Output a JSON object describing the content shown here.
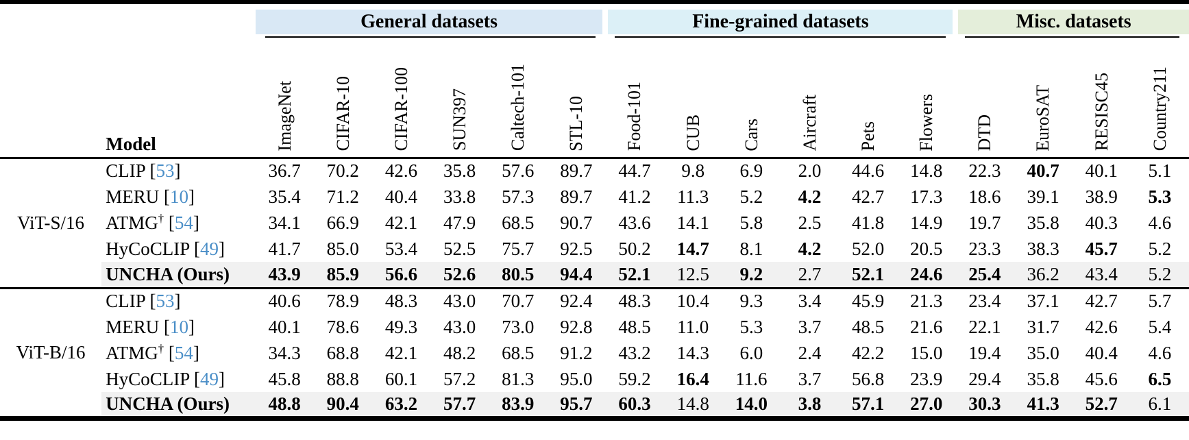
{
  "colors": {
    "general_bg": "#d9e8f5",
    "fine_bg": "#dcf0f7",
    "misc_bg": "#e4eeda",
    "cite": "#4a8ec7",
    "highlight_row": "#f1f1f1"
  },
  "header": {
    "model_label": "Model",
    "groups": [
      {
        "id": "general",
        "label": "General datasets",
        "span": 6
      },
      {
        "id": "fine",
        "label": "Fine-grained datasets",
        "span": 6
      },
      {
        "id": "misc",
        "label": "Misc. datasets",
        "span": 4
      }
    ],
    "columns": [
      "ImageNet",
      "CIFAR-10",
      "CIFAR-100",
      "SUN397",
      "Caltech-101",
      "STL-10",
      "Food-101",
      "CUB",
      "Cars",
      "Aircraft",
      "Pets",
      "Flowers",
      "DTD",
      "EuroSAT",
      "RESISC45",
      "Country211"
    ]
  },
  "sections": [
    {
      "backbone": "ViT-S/16",
      "rows": [
        {
          "model": "CLIP",
          "cite": "53",
          "dagger": false,
          "ours": false,
          "values": [
            "36.7",
            "70.2",
            "42.6",
            "35.8",
            "57.6",
            "89.7",
            "44.7",
            "9.8",
            "6.9",
            "2.0",
            "44.6",
            "14.8",
            "22.3",
            "40.7",
            "40.1",
            "5.1"
          ],
          "bold": [
            13
          ]
        },
        {
          "model": "MERU",
          "cite": "10",
          "dagger": false,
          "ours": false,
          "values": [
            "35.4",
            "71.2",
            "40.4",
            "33.8",
            "57.3",
            "89.7",
            "41.2",
            "11.3",
            "5.2",
            "4.2",
            "42.7",
            "17.3",
            "18.6",
            "39.1",
            "38.9",
            "5.3"
          ],
          "bold": [
            9,
            15
          ]
        },
        {
          "model": "ATMG",
          "cite": "54",
          "dagger": true,
          "ours": false,
          "values": [
            "34.1",
            "66.9",
            "42.1",
            "47.9",
            "68.5",
            "90.7",
            "43.6",
            "14.1",
            "5.8",
            "2.5",
            "41.8",
            "14.9",
            "19.7",
            "35.8",
            "40.3",
            "4.6"
          ],
          "bold": []
        },
        {
          "model": "HyCoCLIP",
          "cite": "49",
          "dagger": false,
          "ours": false,
          "values": [
            "41.7",
            "85.0",
            "53.4",
            "52.5",
            "75.7",
            "92.5",
            "50.2",
            "14.7",
            "8.1",
            "4.2",
            "52.0",
            "20.5",
            "23.3",
            "38.3",
            "45.7",
            "5.2"
          ],
          "bold": [
            7,
            9,
            14
          ]
        },
        {
          "model": "UNCHA (Ours)",
          "cite": "",
          "dagger": false,
          "ours": true,
          "values": [
            "43.9",
            "85.9",
            "56.6",
            "52.6",
            "80.5",
            "94.4",
            "52.1",
            "12.5",
            "9.2",
            "2.7",
            "52.1",
            "24.6",
            "25.4",
            "36.2",
            "43.4",
            "5.2"
          ],
          "bold": [
            0,
            1,
            2,
            3,
            4,
            5,
            6,
            8,
            10,
            11,
            12
          ]
        }
      ]
    },
    {
      "backbone": "ViT-B/16",
      "rows": [
        {
          "model": "CLIP",
          "cite": "53",
          "dagger": false,
          "ours": false,
          "values": [
            "40.6",
            "78.9",
            "48.3",
            "43.0",
            "70.7",
            "92.4",
            "48.3",
            "10.4",
            "9.3",
            "3.4",
            "45.9",
            "21.3",
            "23.4",
            "37.1",
            "42.7",
            "5.7"
          ],
          "bold": []
        },
        {
          "model": "MERU",
          "cite": "10",
          "dagger": false,
          "ours": false,
          "values": [
            "40.1",
            "78.6",
            "49.3",
            "43.0",
            "73.0",
            "92.8",
            "48.5",
            "11.0",
            "5.3",
            "3.7",
            "48.5",
            "21.6",
            "22.1",
            "31.7",
            "42.6",
            "5.4"
          ],
          "bold": []
        },
        {
          "model": "ATMG",
          "cite": "54",
          "dagger": true,
          "ours": false,
          "values": [
            "34.3",
            "68.8",
            "42.1",
            "48.2",
            "68.5",
            "91.2",
            "43.2",
            "14.3",
            "6.0",
            "2.4",
            "42.2",
            "15.0",
            "19.4",
            "35.0",
            "40.4",
            "4.6"
          ],
          "bold": []
        },
        {
          "model": "HyCoCLIP",
          "cite": "49",
          "dagger": false,
          "ours": false,
          "values": [
            "45.8",
            "88.8",
            "60.1",
            "57.2",
            "81.3",
            "95.0",
            "59.2",
            "16.4",
            "11.6",
            "3.7",
            "56.8",
            "23.9",
            "29.4",
            "35.8",
            "45.6",
            "6.5"
          ],
          "bold": [
            7,
            15
          ]
        },
        {
          "model": "UNCHA (Ours)",
          "cite": "",
          "dagger": false,
          "ours": true,
          "values": [
            "48.8",
            "90.4",
            "63.2",
            "57.7",
            "83.9",
            "95.7",
            "60.3",
            "14.8",
            "14.0",
            "3.8",
            "57.1",
            "27.0",
            "30.3",
            "41.3",
            "52.7",
            "6.1"
          ],
          "bold": [
            0,
            1,
            2,
            3,
            4,
            5,
            6,
            8,
            9,
            10,
            11,
            12,
            13,
            14
          ]
        }
      ]
    }
  ]
}
